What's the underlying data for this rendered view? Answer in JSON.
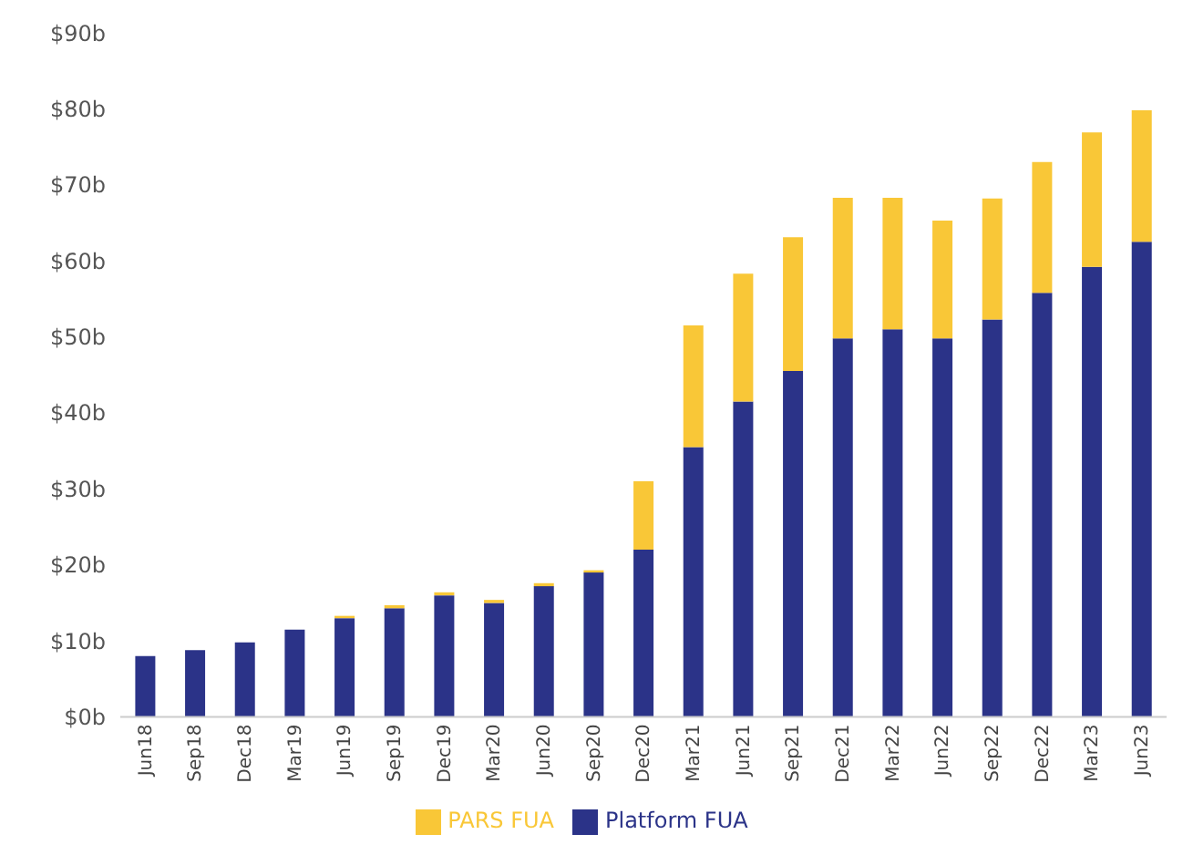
{
  "chart_data": {
    "type": "bar",
    "stacked": true,
    "categories": [
      "Jun18",
      "Sep18",
      "Dec18",
      "Mar19",
      "Jun19",
      "Sep19",
      "Dec19",
      "Mar20",
      "Jun20",
      "Sep20",
      "Dec20",
      "Mar21",
      "Jun21",
      "Sep21",
      "Dec21",
      "Mar22",
      "Jun22",
      "Sep22",
      "Dec22",
      "Mar23",
      "Jun23"
    ],
    "series": [
      {
        "name": "Platform FUA",
        "color": "#2b3388",
        "values": [
          8,
          8.8,
          9.8,
          11.5,
          13,
          14.3,
          16,
          15,
          17.2,
          19,
          22,
          35.5,
          41.5,
          45.5,
          49.8,
          51,
          49.8,
          52.3,
          55.8,
          59.2,
          62.5
        ]
      },
      {
        "name": "PARS FUA",
        "color": "#f9c737",
        "values": [
          0,
          0,
          0,
          0,
          0.3,
          0.4,
          0.4,
          0.4,
          0.4,
          0.3,
          9,
          16,
          16.8,
          17.6,
          18.5,
          17.3,
          15.5,
          15.9,
          17.2,
          17.7,
          17.3
        ]
      }
    ],
    "ylim": [
      0,
      90
    ],
    "yticks": [
      {
        "value": 0,
        "label": "$0b"
      },
      {
        "value": 10,
        "label": "$10b"
      },
      {
        "value": 20,
        "label": "$20b"
      },
      {
        "value": 30,
        "label": "$30b"
      },
      {
        "value": 40,
        "label": "$40b"
      },
      {
        "value": 50,
        "label": "$50b"
      },
      {
        "value": 60,
        "label": "$60b"
      },
      {
        "value": 70,
        "label": "$70b"
      },
      {
        "value": 80,
        "label": "$80b"
      },
      {
        "value": 90,
        "label": "$90b"
      }
    ],
    "grid": false,
    "legend": "bottom"
  }
}
